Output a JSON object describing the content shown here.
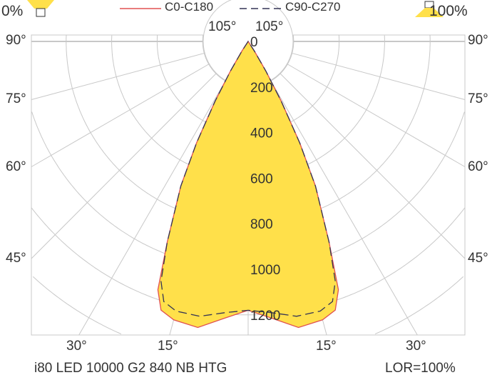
{
  "header": {
    "left_percent": "0%",
    "right_percent": "100%",
    "left_icon": "lamp-downlight-icon",
    "right_icon": "lamp-uplight-icon"
  },
  "footer": {
    "product": "i80 LED 10000 G2 840 NB HTG",
    "lor": "LOR=100%"
  },
  "colors": {
    "fill": "#FFE04A",
    "c0": "#E05050",
    "c90": "#333355",
    "grid": "#C8C8C8"
  },
  "chart_data": {
    "type": "polar",
    "radial_ticks": [
      0,
      200,
      400,
      600,
      800,
      1000,
      1200
    ],
    "angle_labels": {
      "left": [
        "90°",
        "75°",
        "60°",
        "45°"
      ],
      "top": [
        "105°",
        "105°"
      ],
      "bottom": [
        "30°",
        "15°",
        "15°",
        "30°"
      ],
      "right": [
        "90°",
        "75°",
        "60°",
        "45°"
      ]
    },
    "angles_deg": [
      0,
      5,
      10,
      15,
      18,
      20,
      22,
      25,
      27,
      29,
      31,
      33,
      35
    ],
    "series": [
      {
        "name": "C0-C180",
        "style": "solid",
        "values": [
          1180,
          1220,
          1275,
          1265,
          1240,
          1160,
          950,
          700,
          500,
          300,
          150,
          50,
          0
        ]
      },
      {
        "name": "C90-C270",
        "style": "dashed",
        "values": [
          1180,
          1195,
          1225,
          1225,
          1200,
          1120,
          950,
          700,
          500,
          300,
          150,
          50,
          0
        ]
      }
    ]
  }
}
